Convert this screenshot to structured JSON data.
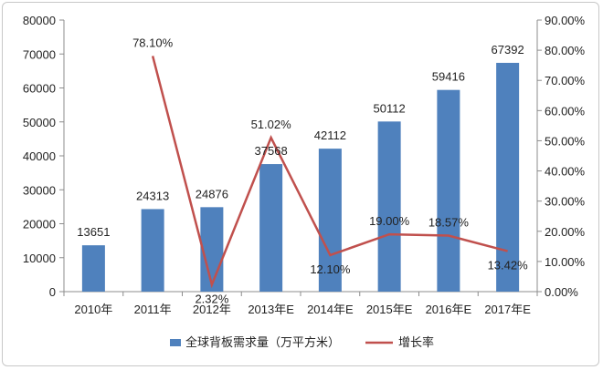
{
  "chart_data": {
    "type": "bar+line",
    "categories": [
      "2010年",
      "2011年",
      "2012年",
      "2013年E",
      "2014年E",
      "2015年E",
      "2016年E",
      "2017年E"
    ],
    "series": [
      {
        "name": "全球背板需求量（万平方米）",
        "type": "bar",
        "axis": "left",
        "color": "#4f81bd",
        "values": [
          13651,
          24313,
          24876,
          37568,
          42112,
          50112,
          59416,
          67392
        ],
        "labels": [
          "13651",
          "24313",
          "24876",
          "37568",
          "42112",
          "50112",
          "59416",
          "67392"
        ]
      },
      {
        "name": "增长率",
        "type": "line",
        "axis": "right",
        "color": "#c0504d",
        "values": [
          null,
          78.1,
          2.32,
          51.02,
          12.1,
          19.0,
          18.57,
          13.42
        ],
        "labels": [
          null,
          "78.10%",
          "2.32%",
          "51.02%",
          "12.10%",
          "19.00%",
          "18.57%",
          "13.42%"
        ]
      }
    ],
    "y_left": {
      "lim": [
        0,
        80000
      ],
      "ticks": [
        0,
        10000,
        20000,
        30000,
        40000,
        50000,
        60000,
        70000,
        80000
      ],
      "tick_labels": [
        "0",
        "10000",
        "20000",
        "30000",
        "40000",
        "50000",
        "60000",
        "70000",
        "80000"
      ]
    },
    "y_right": {
      "lim": [
        0,
        90
      ],
      "ticks": [
        0,
        10,
        20,
        30,
        40,
        50,
        60,
        70,
        80,
        90
      ],
      "tick_labels": [
        "0.00%",
        "10.00%",
        "20.00%",
        "30.00%",
        "40.00%",
        "50.00%",
        "60.00%",
        "70.00%",
        "80.00%",
        "90.00%"
      ]
    },
    "legend_position": "bottom",
    "grid": false
  }
}
